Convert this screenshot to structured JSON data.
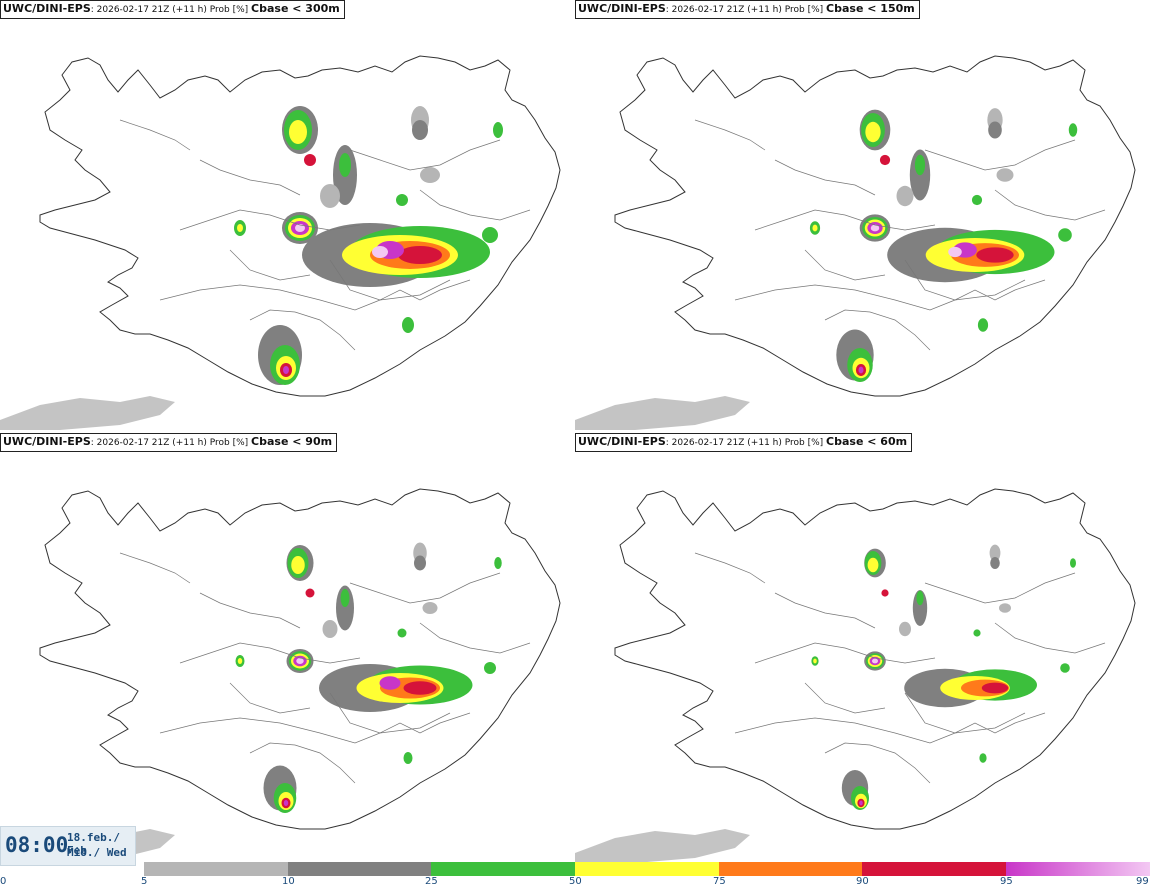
{
  "panels": [
    {
      "model": "UWC/DINI-EPS",
      "run": ": 2026-02-17 21Z (+11 h) Prob [%]",
      "threshold": "Cbase < 300m"
    },
    {
      "model": "UWC/DINI-EPS",
      "run": ": 2026-02-17 21Z (+11 h) Prob [%]",
      "threshold": "Cbase < 150m"
    },
    {
      "model": "UWC/DINI-EPS",
      "run": ": 2026-02-17 21Z (+11 h) Prob [%]",
      "threshold": "Cbase < 90m"
    },
    {
      "model": "UWC/DINI-EPS",
      "run": ": 2026-02-17 21Z (+11 h) Prob [%]",
      "threshold": "Cbase < 60m"
    }
  ],
  "valid": {
    "time": "08:00",
    "date_line1": "18.feb./ Feb",
    "date_line2": "Mið./ Wed"
  },
  "legend": {
    "ticks": [
      "0",
      "5",
      "10",
      "25",
      "50",
      "75",
      "90",
      "95",
      "99"
    ],
    "colors": {
      "c5": "#b5b5b5",
      "c10": "#808080",
      "c25": "#3cbf3c",
      "c50": "#ffff33",
      "c75": "#ff7a1a",
      "c90": "#d5133a",
      "c95": "#c836c8",
      "c99": "#f3c8f3"
    }
  }
}
